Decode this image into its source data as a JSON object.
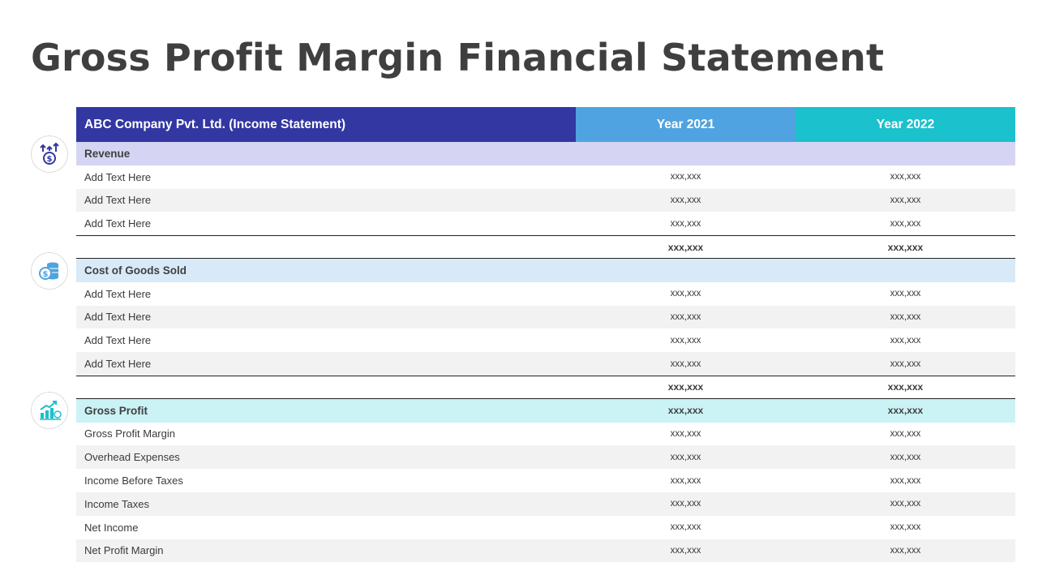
{
  "title": "Gross Profit Margin Financial Statement",
  "table": {
    "header": {
      "company": "ABC Company Pvt. Ltd.  (Income Statement)",
      "year1": "Year 2021",
      "year2": "Year 2022"
    },
    "revenue": {
      "label": "Revenue",
      "rows": [
        {
          "label": "Add Text Here",
          "v1": "xxx,xxx",
          "v2": "xxx,xxx"
        },
        {
          "label": "Add Text Here",
          "v1": "xxx,xxx",
          "v2": "xxx,xxx"
        },
        {
          "label": "Add Text Here",
          "v1": "xxx,xxx",
          "v2": "xxx,xxx"
        }
      ],
      "total": {
        "v1": "xxx,xxx",
        "v2": "xxx,xxx"
      }
    },
    "cogs": {
      "label": "Cost of Goods Sold",
      "rows": [
        {
          "label": "Add Text Here",
          "v1": "xxx,xxx",
          "v2": "xxx,xxx"
        },
        {
          "label": "Add Text Here",
          "v1": "xxx,xxx",
          "v2": "xxx,xxx"
        },
        {
          "label": "Add Text Here",
          "v1": "xxx,xxx",
          "v2": "xxx,xxx"
        },
        {
          "label": "Add Text Here",
          "v1": "xxx,xxx",
          "v2": "xxx,xxx"
        }
      ],
      "total": {
        "v1": "xxx,xxx",
        "v2": "xxx,xxx"
      }
    },
    "gross": {
      "label": "Gross Profit",
      "v1": "xxx,xxx",
      "v2": "xxx,xxx",
      "rows": [
        {
          "label": "Gross Profit Margin",
          "v1": "xxx,xxx",
          "v2": "xxx,xxx"
        },
        {
          "label": "Overhead Expenses",
          "v1": "xxx,xxx",
          "v2": "xxx,xxx"
        },
        {
          "label": "Income Before Taxes",
          "v1": "xxx,xxx",
          "v2": "xxx,xxx"
        },
        {
          "label": "Income Taxes",
          "v1": "xxx,xxx",
          "v2": "xxx,xxx"
        },
        {
          "label": "Net Income",
          "v1": "xxx,xxx",
          "v2": "xxx,xxx"
        },
        {
          "label": "Net Profit Margin",
          "v1": "xxx,xxx",
          "v2": "xxx,xxx"
        }
      ]
    }
  },
  "icons": [
    "revenue-growth-icon",
    "coin-stack-icon",
    "profit-chart-icon"
  ],
  "colors": {
    "header_company": "#3237a2",
    "header_year1": "#4fa3e0",
    "header_year2": "#1bc1cc",
    "revenue_band": "#d5d5f3",
    "cogs_band": "#d8eaf8",
    "gross_band": "#cbf3f5"
  }
}
